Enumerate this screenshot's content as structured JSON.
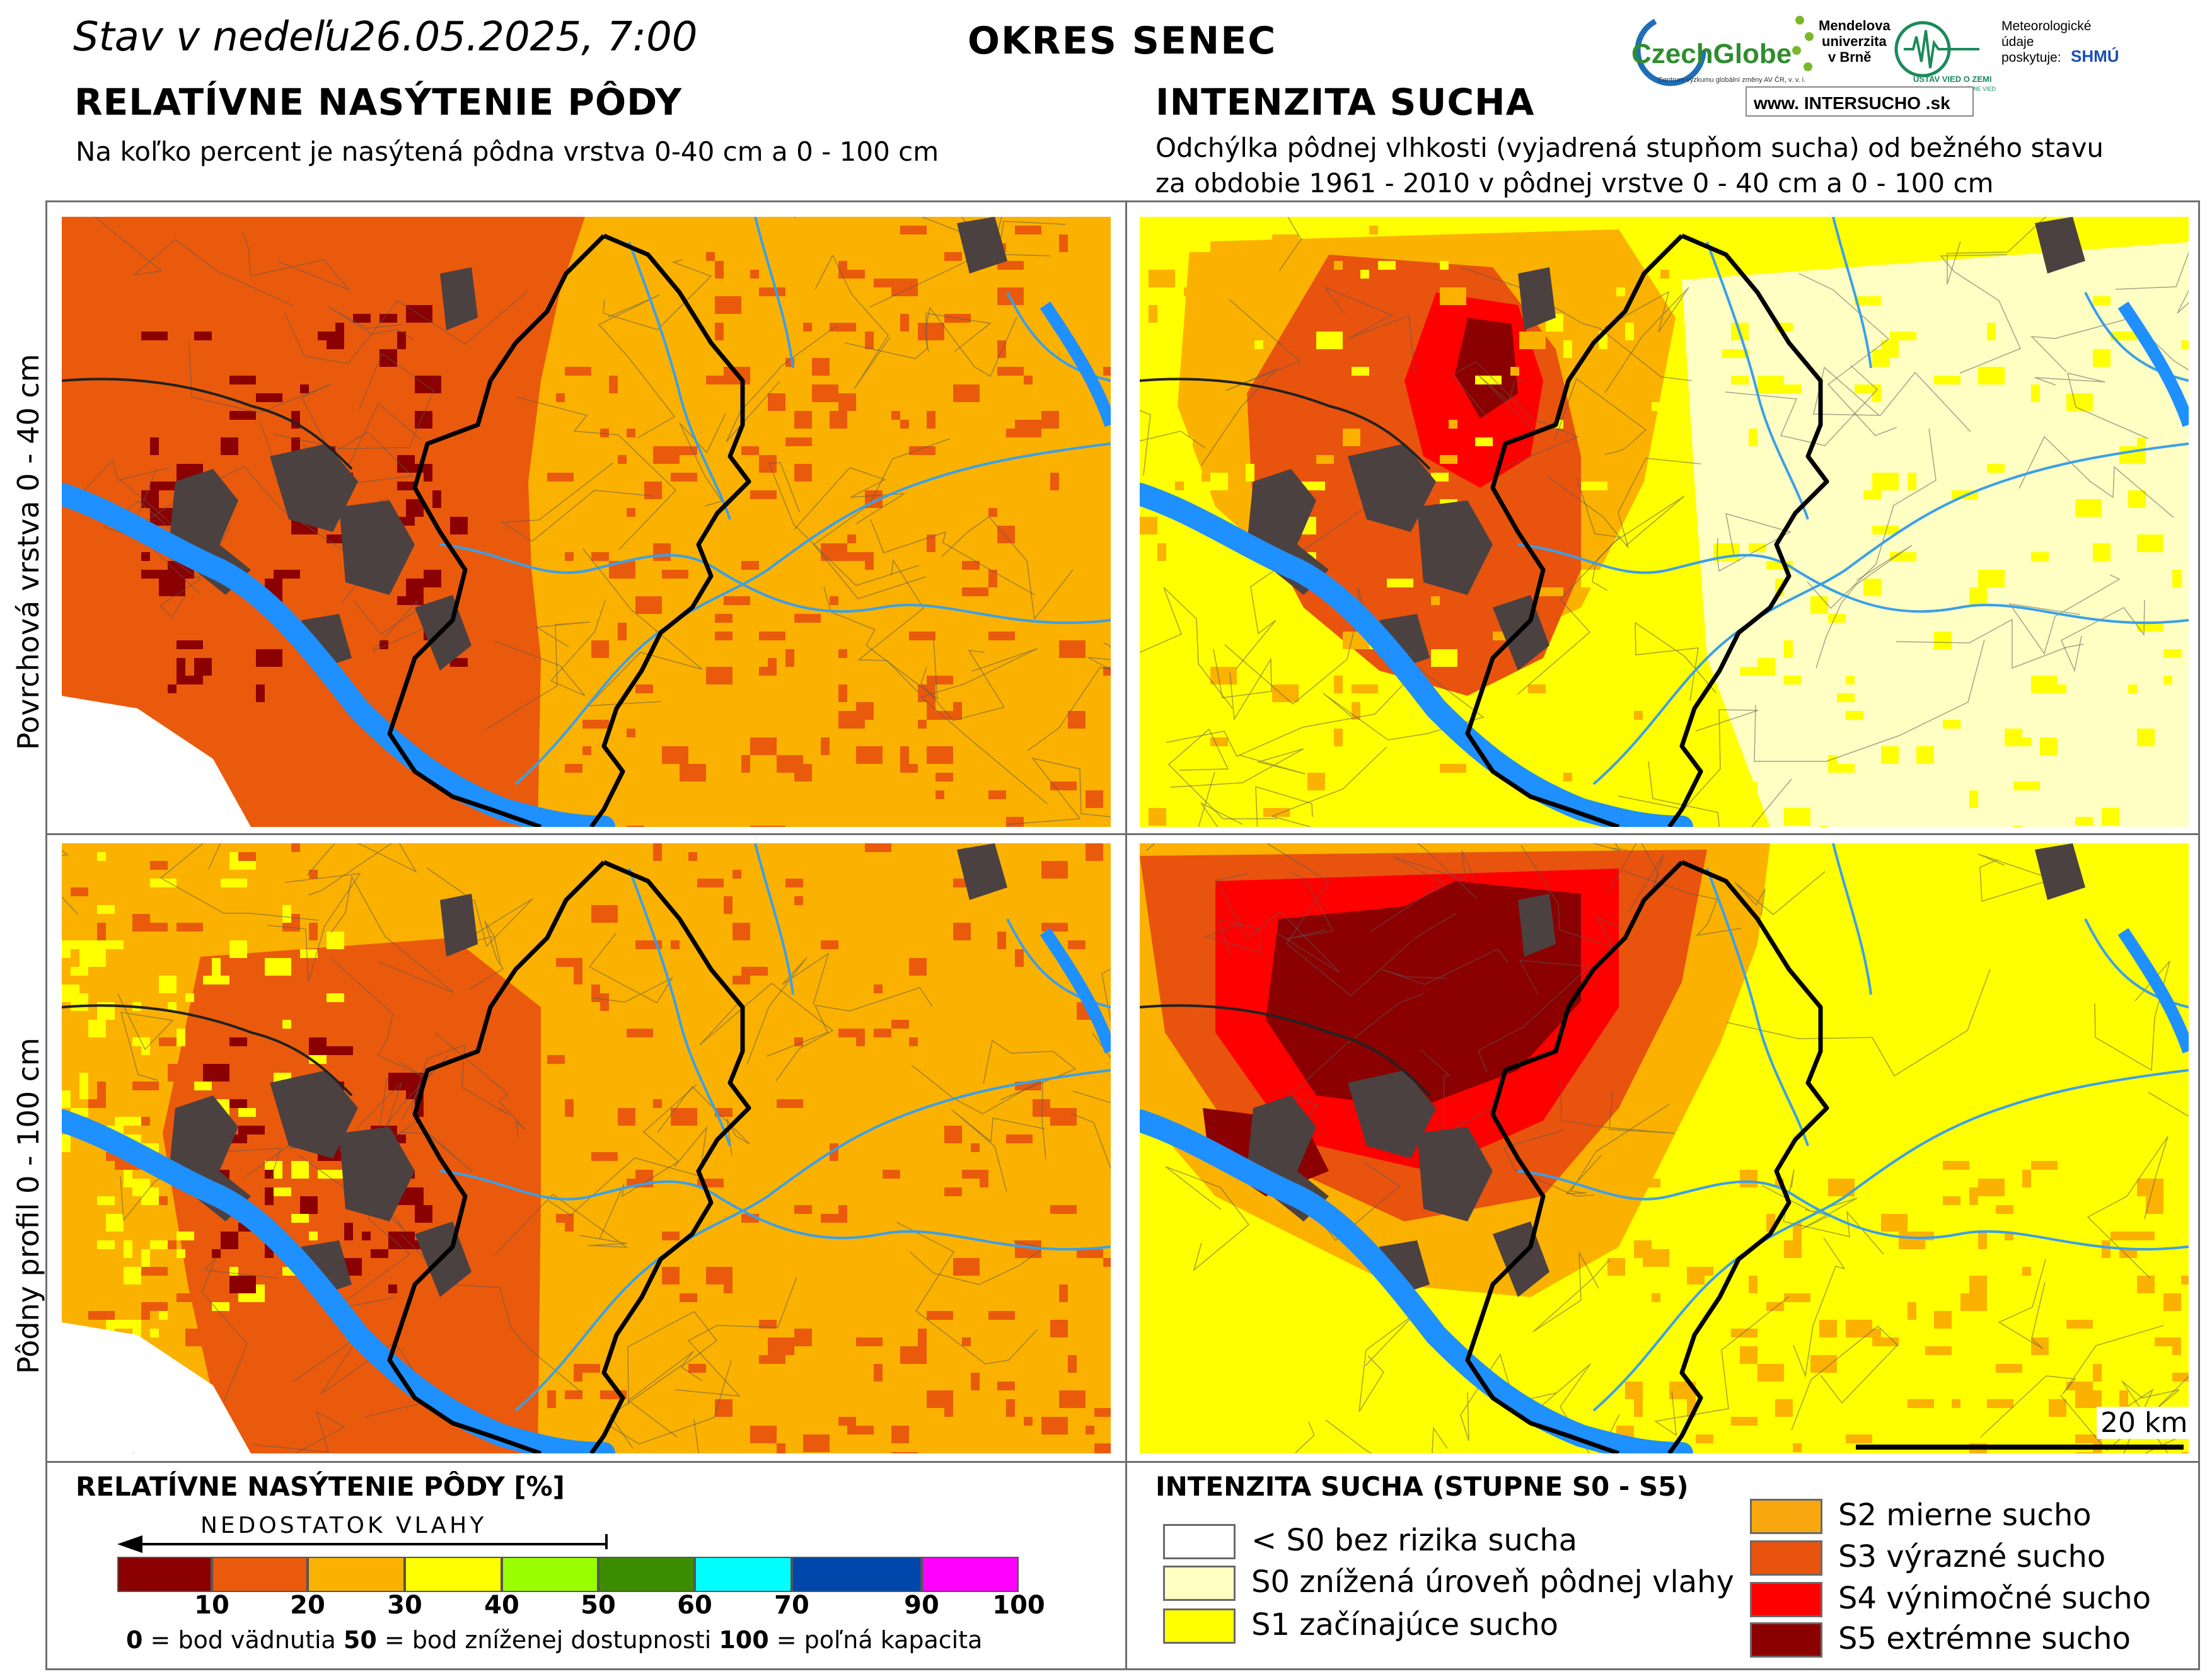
{
  "header": {
    "date": "Stav v nedeľu26.05.2025, 7:00",
    "district": "OKRES  SENEC",
    "left_title": "RELATÍVNE NASÝTENIE PÔDY",
    "left_subtitle": "Na koľko percent je nasýtená pôdna vrstva 0-40 cm a 0 - 100 cm",
    "right_title": "INTENZITA SUCHA",
    "right_subtitle_1": "Odchýlka pôdnej vlhkosti (vyjadrená stupňom sucha) od bežného stavu",
    "right_subtitle_2": "za obdobie 1961 - 2010 v pôdnej vrstve 0 - 40 cm a 0 - 100 cm"
  },
  "logos": {
    "czechglobe": "CzechGlobe",
    "czechglobe_sub": "Centrum výzkumu globální změny AV ČR, v. v. i.",
    "mendel_1": "Mendelova",
    "mendel_2": "univerzita",
    "mendel_3": "v Brně",
    "ustav": "ÚSTAV VIED O ZEMI",
    "ustav_sub": "SLOVENSKEJ AKADÉMIE VIED",
    "meteo_1": "Meteorologické",
    "meteo_2": "údaje",
    "meteo_3": "poskytuje:",
    "shmu": "SHMÚ",
    "intersucho": "www.  INTERSUCHO .sk"
  },
  "rows": {
    "top_label": "Povrchová vrstva 0 - 40 cm",
    "bottom_label": "Pôdny profil 0 - 100 cm"
  },
  "scale_bar": "20 km",
  "legend_left": {
    "title": "RELATÍVNE NASÝTENIE PÔDY [%]",
    "arrow_label": "NEDOSTATOK VLAHY",
    "colors": [
      "#8b0000",
      "#ea5a0c",
      "#fbb100",
      "#ffff00",
      "#99ff00",
      "#3c8c00",
      "#00ffff",
      "#0047ab",
      "#ff00ff"
    ],
    "ticks": [
      "10",
      "20",
      "30",
      "40",
      "50",
      "60",
      "70",
      "90",
      "100"
    ],
    "note_0_value": "0",
    "note_0_text": " = bod vädnutia",
    "note_50_value": "50",
    "note_50_text": " = bod zníženej dostupnosti",
    "note_100_value": "100",
    "note_100_text": " = poľná kapacita"
  },
  "legend_right": {
    "title": "INTENZITA SUCHA (STUPNE S0 - S5)",
    "items": [
      {
        "color": "#ffffff",
        "label": "< S0 bez rizika sucha"
      },
      {
        "color": "#ffffc4",
        "label": "S0 znížená úroveň pôdnej vlahy"
      },
      {
        "color": "#ffff00",
        "label": "S1 začínajúce sucho"
      },
      {
        "color": "#f9a70f",
        "label": "S2 mierne sucho"
      },
      {
        "color": "#e8530e",
        "label": "S3 výrazné sucho"
      },
      {
        "color": "#ff0000",
        "label": "S4 výnimočné sucho"
      },
      {
        "color": "#8b0000",
        "label": "S5 extrémne sucho"
      }
    ]
  },
  "map_colors": {
    "dark_red": "#8b0000",
    "orange_red": "#ea5a0c",
    "orange": "#fbb100",
    "yellow": "#ffff00",
    "pale": "#ffffc4",
    "red": "#ff0000",
    "urban": "#4b4141",
    "water": "#1e90ff"
  }
}
